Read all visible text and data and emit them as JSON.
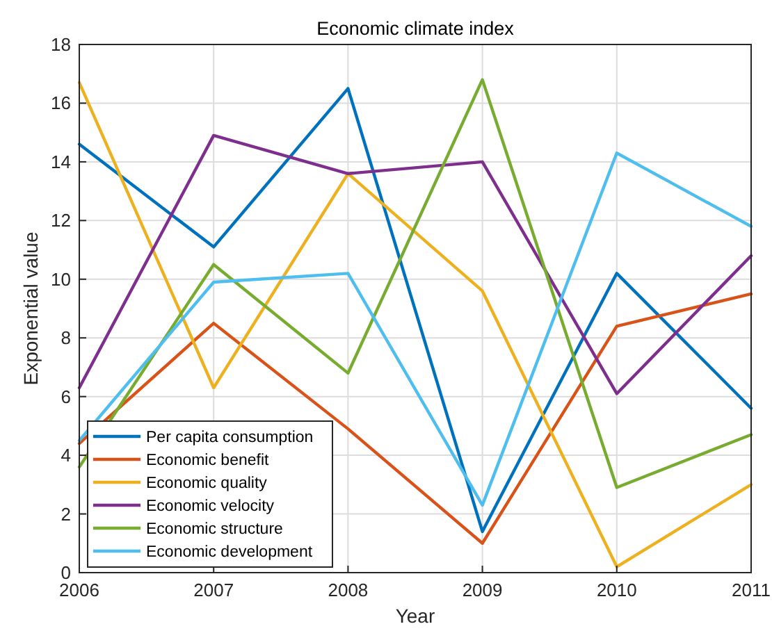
{
  "chart_data": {
    "type": "line",
    "title": "Economic climate index",
    "xlabel": "Year",
    "ylabel": "Exponential value",
    "x": [
      2006,
      2007,
      2008,
      2009,
      2010,
      2011
    ],
    "xlim": [
      2006,
      2011
    ],
    "xticks": [
      2006,
      2007,
      2008,
      2009,
      2010,
      2011
    ],
    "ylim": [
      0,
      18
    ],
    "yticks": [
      0,
      2,
      4,
      6,
      8,
      10,
      12,
      14,
      16,
      18
    ],
    "grid": true,
    "legend": "bottom left",
    "marker": "none",
    "line_style": "solid",
    "series": [
      {
        "name": "Per capita consumption",
        "color": "#0072bd",
        "values": [
          14.6,
          11.1,
          16.5,
          1.4,
          10.2,
          5.6
        ]
      },
      {
        "name": "Economic benefit",
        "color": "#d95319",
        "values": [
          4.4,
          8.5,
          4.9,
          1.0,
          8.4,
          9.5
        ]
      },
      {
        "name": "Economic quality",
        "color": "#edb120",
        "values": [
          16.7,
          6.3,
          13.6,
          9.6,
          0.2,
          3.0
        ]
      },
      {
        "name": "Economic velocity",
        "color": "#7e2f8e",
        "values": [
          6.3,
          14.9,
          13.6,
          14.0,
          6.1,
          10.8
        ]
      },
      {
        "name": "Economic structure",
        "color": "#77ac30",
        "values": [
          3.6,
          10.5,
          6.8,
          16.8,
          2.9,
          4.7
        ]
      },
      {
        "name": "Economic development",
        "color": "#4dbeee",
        "values": [
          4.5,
          9.9,
          10.2,
          2.3,
          14.3,
          11.8
        ]
      }
    ]
  }
}
